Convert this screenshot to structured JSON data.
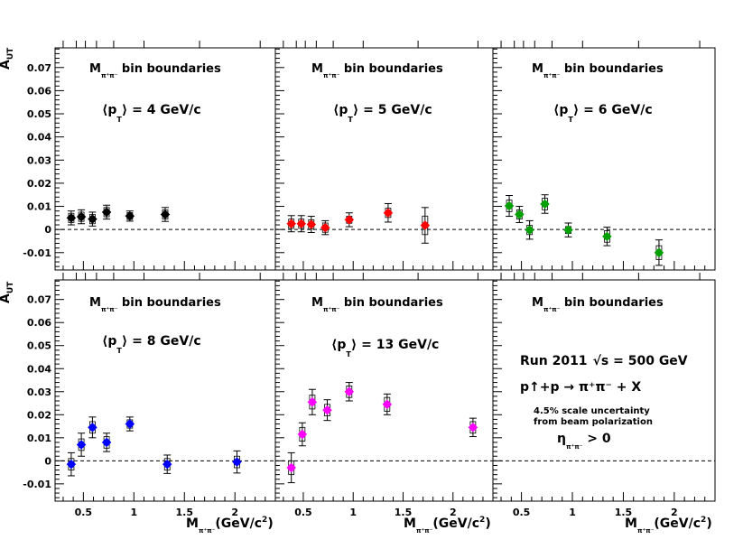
{
  "figure": {
    "y_axis_label": {
      "main": "A",
      "sub": "UT"
    },
    "x_axis_label": {
      "main": "M",
      "sub": "π⁺π⁻",
      "unit": "(GeV/c",
      "sup": "2",
      "close": ")"
    },
    "bin_boundaries_label": {
      "main": "M",
      "sub": "π⁺π⁻",
      "rest": " bin boundaries"
    },
    "info": {
      "run": "Run 2011",
      "sqrt": "√",
      "s_eq": "s = 500 GeV",
      "reaction": "p↑+p → π⁺π⁻ + X",
      "uncertainty_line1": "4.5% scale uncertainty",
      "uncertainty_line2": "from beam polarization",
      "eta": "η",
      "eta_sub": "π⁺π⁻",
      "eta_cond": " > 0"
    }
  },
  "chart_data": [
    {
      "type": "scatter",
      "pt_label": {
        "pre": "⟨p",
        "sub": "T",
        "post": "⟩ = 4 GeV/c"
      },
      "color": "#000000",
      "ylim": [
        -0.0175,
        0.0785
      ],
      "xlim": [
        0.22,
        2.4
      ],
      "x_ticks": [],
      "y_ticks": [
        "-0.01",
        "0",
        "0.01",
        "0.02",
        "0.03",
        "0.04",
        "0.05",
        "0.06",
        "0.07"
      ],
      "bin_boundaries": [
        0.3,
        0.43,
        0.52,
        0.63,
        0.8,
        1.1,
        1.65,
        2.25
      ],
      "points": [
        {
          "x": 0.38,
          "y": 0.005,
          "err": 0.003,
          "sys": 0.002
        },
        {
          "x": 0.48,
          "y": 0.0055,
          "err": 0.003,
          "sys": 0.002
        },
        {
          "x": 0.59,
          "y": 0.0045,
          "err": 0.003,
          "sys": 0.002
        },
        {
          "x": 0.73,
          "y": 0.0075,
          "err": 0.003,
          "sys": 0.002
        },
        {
          "x": 0.96,
          "y": 0.0058,
          "err": 0.0022,
          "sys": 0.0015
        },
        {
          "x": 1.31,
          "y": 0.0065,
          "err": 0.003,
          "sys": 0.002
        }
      ]
    },
    {
      "type": "scatter",
      "pt_label": {
        "pre": "⟨p",
        "sub": "T",
        "post": "⟩ = 5 GeV/c"
      },
      "color": "#ff0000",
      "ylim": [
        -0.0175,
        0.0785
      ],
      "xlim": [
        0.22,
        2.4
      ],
      "x_ticks": [],
      "y_ticks": [],
      "bin_boundaries": [
        0.3,
        0.43,
        0.52,
        0.63,
        0.8,
        1.1,
        1.65,
        2.25
      ],
      "points": [
        {
          "x": 0.38,
          "y": 0.0025,
          "err": 0.0035,
          "sys": 0.002
        },
        {
          "x": 0.48,
          "y": 0.0025,
          "err": 0.0035,
          "sys": 0.002
        },
        {
          "x": 0.58,
          "y": 0.0022,
          "err": 0.0035,
          "sys": 0.002
        },
        {
          "x": 0.72,
          "y": 0.0008,
          "err": 0.003,
          "sys": 0.002
        },
        {
          "x": 0.96,
          "y": 0.0042,
          "err": 0.003,
          "sys": 0.0015
        },
        {
          "x": 1.35,
          "y": 0.0072,
          "err": 0.004,
          "sys": 0.002
        },
        {
          "x": 1.72,
          "y": 0.0018,
          "err": 0.0077,
          "sys": 0.004
        }
      ]
    },
    {
      "type": "scatter",
      "pt_label": {
        "pre": "⟨p",
        "sub": "T",
        "post": "⟩ = 6 GeV/c"
      },
      "color": "#00a000",
      "ylim": [
        -0.0175,
        0.0785
      ],
      "xlim": [
        0.22,
        2.4
      ],
      "x_ticks": [],
      "y_ticks": [],
      "bin_boundaries": [
        0.3,
        0.43,
        0.52,
        0.63,
        0.8,
        1.1,
        1.65,
        2.25
      ],
      "points": [
        {
          "x": 0.38,
          "y": 0.0102,
          "err": 0.0045,
          "sys": 0.0025
        },
        {
          "x": 0.48,
          "y": 0.0065,
          "err": 0.0035,
          "sys": 0.002
        },
        {
          "x": 0.58,
          "y": -0.0002,
          "err": 0.004,
          "sys": 0.002
        },
        {
          "x": 0.73,
          "y": 0.011,
          "err": 0.004,
          "sys": 0.0025
        },
        {
          "x": 0.96,
          "y": -0.0002,
          "err": 0.003,
          "sys": 0.0015
        },
        {
          "x": 1.34,
          "y": -0.003,
          "err": 0.004,
          "sys": 0.0025
        },
        {
          "x": 1.85,
          "y": -0.01,
          "err": 0.0055,
          "sys": 0.003
        }
      ]
    },
    {
      "type": "scatter",
      "pt_label": {
        "pre": "⟨p",
        "sub": "T",
        "post": "⟩ = 8 GeV/c"
      },
      "color": "#0000ff",
      "ylim": [
        -0.0175,
        0.0785
      ],
      "xlim": [
        0.22,
        2.4
      ],
      "x_ticks": [
        {
          "v": 0.5,
          "t": "0.5"
        },
        {
          "v": 1.0,
          "t": "1"
        },
        {
          "v": 1.5,
          "t": "1.5"
        },
        {
          "v": 2.0,
          "t": "2"
        }
      ],
      "y_ticks": [
        "-0.01",
        "0",
        "0.01",
        "0.02",
        "0.03",
        "0.04",
        "0.05",
        "0.06",
        "0.07"
      ],
      "bin_boundaries": [
        0.3,
        0.43,
        0.52,
        0.63,
        0.8,
        1.1,
        1.65,
        2.25
      ],
      "points": [
        {
          "x": 0.38,
          "y": -0.0015,
          "err": 0.005,
          "sys": 0.0025
        },
        {
          "x": 0.48,
          "y": 0.007,
          "err": 0.005,
          "sys": 0.0025
        },
        {
          "x": 0.59,
          "y": 0.0145,
          "err": 0.0045,
          "sys": 0.0025
        },
        {
          "x": 0.73,
          "y": 0.008,
          "err": 0.004,
          "sys": 0.0025
        },
        {
          "x": 0.96,
          "y": 0.016,
          "err": 0.003,
          "sys": 0.0018
        },
        {
          "x": 1.33,
          "y": -0.0015,
          "err": 0.004,
          "sys": 0.0025
        },
        {
          "x": 2.02,
          "y": -0.0005,
          "err": 0.0048,
          "sys": 0.0025
        }
      ]
    },
    {
      "type": "scatter",
      "pt_label": {
        "pre": "⟨p",
        "sub": "T",
        "post": "⟩ = 13 GeV/c"
      },
      "color": "#ff00ff",
      "ylim": [
        -0.0175,
        0.0785
      ],
      "xlim": [
        0.22,
        2.4
      ],
      "x_ticks": [
        {
          "v": 0.5,
          "t": "0.5"
        },
        {
          "v": 1.0,
          "t": "1"
        },
        {
          "v": 1.5,
          "t": "1.5"
        },
        {
          "v": 2.0,
          "t": "2"
        }
      ],
      "y_ticks": [],
      "bin_boundaries": [
        0.3,
        0.43,
        0.52,
        0.63,
        0.8,
        1.1,
        1.65,
        2.25
      ],
      "points": [
        {
          "x": 0.38,
          "y": -0.003,
          "err": 0.0065,
          "sys": 0.003
        },
        {
          "x": 0.49,
          "y": 0.0115,
          "err": 0.005,
          "sys": 0.003
        },
        {
          "x": 0.59,
          "y": 0.0255,
          "err": 0.0055,
          "sys": 0.003
        },
        {
          "x": 0.74,
          "y": 0.022,
          "err": 0.0045,
          "sys": 0.0025
        },
        {
          "x": 0.96,
          "y": 0.03,
          "err": 0.004,
          "sys": 0.0025
        },
        {
          "x": 1.34,
          "y": 0.0245,
          "err": 0.0045,
          "sys": 0.003
        },
        {
          "x": 2.2,
          "y": 0.0145,
          "err": 0.004,
          "sys": 0.0025
        }
      ]
    },
    {
      "type": "scatter",
      "pt_label": null,
      "color": "#000000",
      "ylim": [
        -0.0175,
        0.0785
      ],
      "xlim": [
        0.22,
        2.4
      ],
      "x_ticks": [
        {
          "v": 0.5,
          "t": "0.5"
        },
        {
          "v": 1.0,
          "t": "1"
        },
        {
          "v": 1.5,
          "t": "1.5"
        },
        {
          "v": 2.0,
          "t": "2"
        }
      ],
      "y_ticks": [],
      "bin_boundaries": [
        0.3,
        0.43,
        0.52,
        0.63,
        0.8,
        1.1,
        1.65,
        2.25
      ],
      "points": []
    }
  ]
}
